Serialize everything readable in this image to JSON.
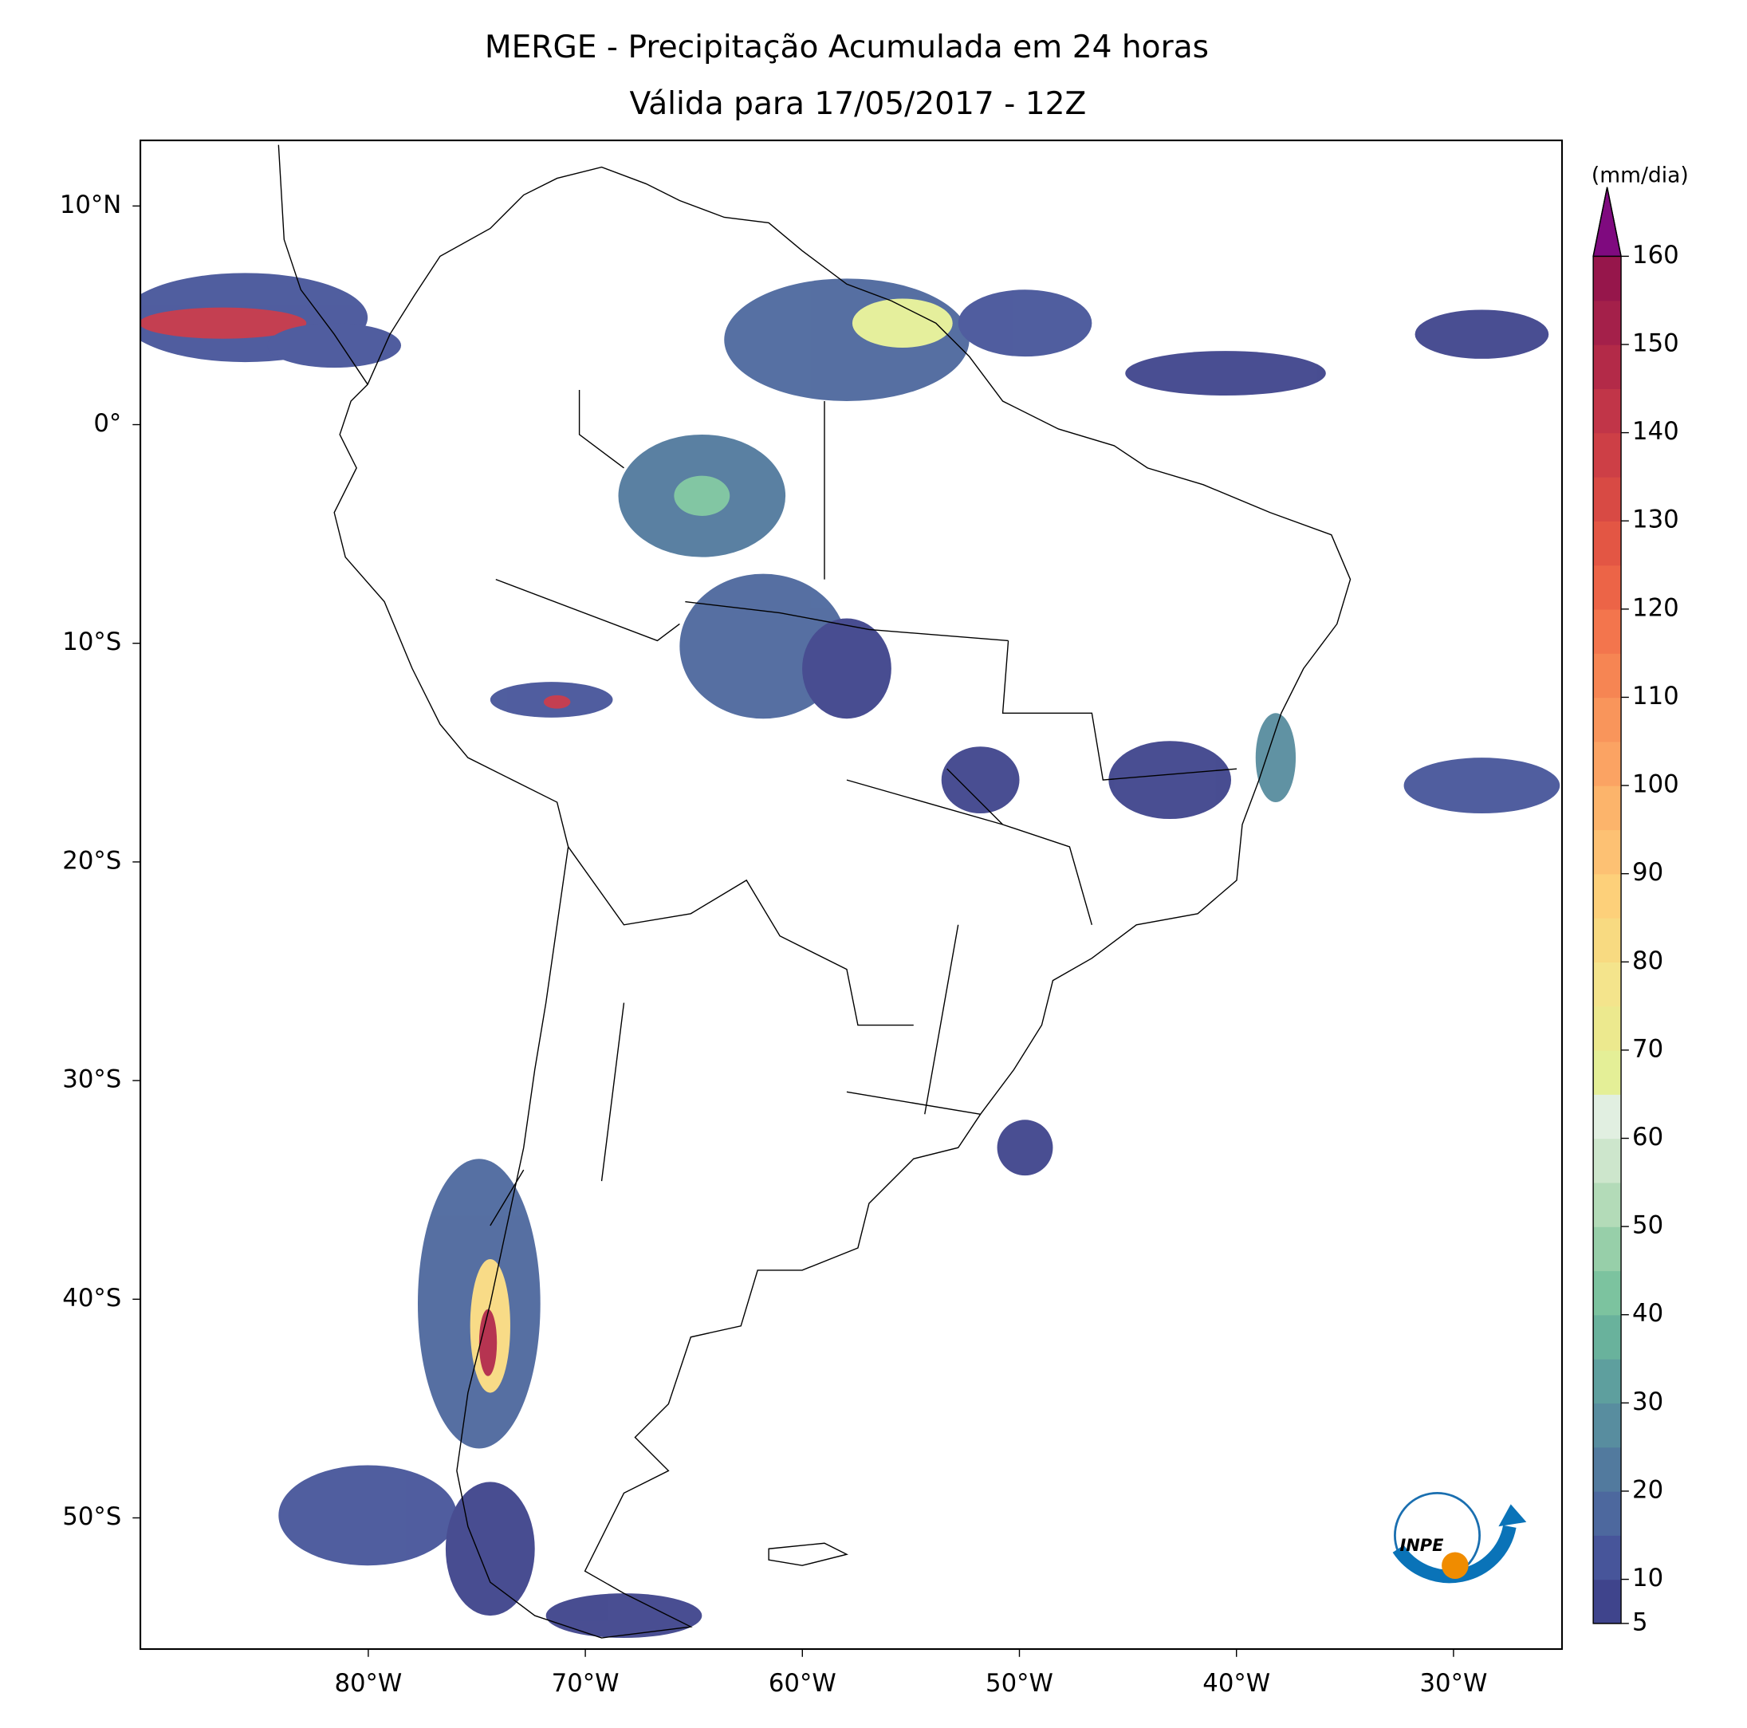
{
  "chart_data": {
    "type": "map",
    "title": [
      "MERGE - Precipitação Acumulada em 24 horas",
      "Válida para 17/05/2017 - 12Z"
    ],
    "xlim": [
      -90.5,
      -25
    ],
    "ylim": [
      -56,
      13
    ],
    "xticks": [
      {
        "value": -80,
        "label": "80°W"
      },
      {
        "value": -70,
        "label": "70°W"
      },
      {
        "value": -60,
        "label": "60°W"
      },
      {
        "value": -50,
        "label": "50°W"
      },
      {
        "value": -40,
        "label": "40°W"
      },
      {
        "value": -30,
        "label": "30°W"
      }
    ],
    "yticks": [
      {
        "value": 10,
        "label": "10°N"
      },
      {
        "value": 0,
        "label": "0°"
      },
      {
        "value": -10,
        "label": "10°S"
      },
      {
        "value": -20,
        "label": "20°S"
      },
      {
        "value": -30,
        "label": "30°S"
      },
      {
        "value": -40,
        "label": "40°S"
      },
      {
        "value": -50,
        "label": "50°S"
      }
    ],
    "colorbar": {
      "label": "(mm/dia)",
      "lim": [
        5,
        160
      ],
      "ticks": [
        5,
        10,
        20,
        30,
        40,
        50,
        60,
        70,
        80,
        90,
        100,
        110,
        120,
        130,
        140,
        150,
        160
      ],
      "colors": [
        "#3f448c",
        "#47559a",
        "#4d689e",
        "#527a9e",
        "#588d9f",
        "#5e9f9e",
        "#69b29c",
        "#7cc39f",
        "#97cfa9",
        "#b3dbb8",
        "#cde6cc",
        "#e1efe1",
        "#e4ef97",
        "#ece98e",
        "#f4e48c",
        "#f8da81",
        "#fdd07a",
        "#fdc173",
        "#fcb46b",
        "#fba363",
        "#f9955b",
        "#f68553",
        "#f3754d",
        "#ec6447",
        "#e35644",
        "#d84a44",
        "#cd3f46",
        "#c13548",
        "#b32a48",
        "#a4204a",
        "#96164b"
      ],
      "extend_color": "#7f0a7f"
    },
    "logo": {
      "text": "INPE"
    }
  }
}
